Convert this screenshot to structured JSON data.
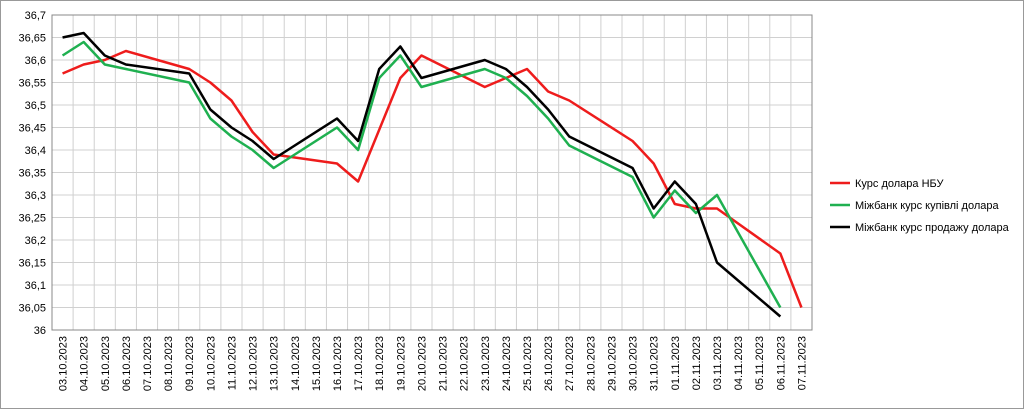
{
  "chart_data": {
    "type": "line",
    "categories": [
      "03.10.2023",
      "04.10.2023",
      "05.10.2023",
      "06.10.2023",
      "07.10.2023",
      "08.10.2023",
      "09.10.2023",
      "10.10.2023",
      "11.10.2023",
      "12.10.2023",
      "13.10.2023",
      "14.10.2023",
      "15.10.2023",
      "16.10.2023",
      "17.10.2023",
      "18.10.2023",
      "19.10.2023",
      "20.10.2023",
      "21.10.2023",
      "22.10.2023",
      "23.10.2023",
      "24.10.2023",
      "25.10.2023",
      "26.10.2023",
      "27.10.2023",
      "28.10.2023",
      "29.10.2023",
      "30.10.2023",
      "31.10.2023",
      "01.11.2023",
      "02.11.2023",
      "03.11.2023",
      "04.11.2023",
      "05.11.2023",
      "06.11.2023",
      "07.11.2023"
    ],
    "series": [
      {
        "name": "Курс долара НБУ",
        "color": "#ee1c1c",
        "x": [
          "03.10.2023",
          "04.10.2023",
          "05.10.2023",
          "06.10.2023",
          "09.10.2023",
          "10.10.2023",
          "11.10.2023",
          "12.10.2023",
          "13.10.2023",
          "16.10.2023",
          "17.10.2023",
          "19.10.2023",
          "20.10.2023",
          "23.10.2023",
          "24.10.2023",
          "25.10.2023",
          "26.10.2023",
          "27.10.2023",
          "30.10.2023",
          "31.10.2023",
          "01.11.2023",
          "02.11.2023",
          "03.11.2023",
          "06.11.2023",
          "07.11.2023"
        ],
        "values": [
          36.57,
          36.59,
          36.6,
          36.62,
          36.58,
          36.55,
          36.51,
          36.44,
          36.39,
          36.37,
          36.33,
          36.56,
          36.61,
          36.54,
          36.56,
          36.58,
          36.53,
          36.51,
          36.42,
          36.37,
          36.28,
          36.27,
          36.27,
          36.17,
          36.05
        ]
      },
      {
        "name": "Міжбанк курс купівлі долара",
        "color": "#1fb050",
        "x": [
          "03.10.2023",
          "04.10.2023",
          "05.10.2023",
          "06.10.2023",
          "09.10.2023",
          "10.10.2023",
          "11.10.2023",
          "12.10.2023",
          "13.10.2023",
          "16.10.2023",
          "17.10.2023",
          "18.10.2023",
          "19.10.2023",
          "20.10.2023",
          "23.10.2023",
          "24.10.2023",
          "25.10.2023",
          "26.10.2023",
          "27.10.2023",
          "30.10.2023",
          "31.10.2023",
          "01.11.2023",
          "02.11.2023",
          "03.11.2023",
          "06.11.2023"
        ],
        "values": [
          36.61,
          36.64,
          36.59,
          36.58,
          36.55,
          36.47,
          36.43,
          36.4,
          36.36,
          36.45,
          36.4,
          36.56,
          36.61,
          36.54,
          36.58,
          36.56,
          36.52,
          36.47,
          36.41,
          36.34,
          36.25,
          36.31,
          36.26,
          36.3,
          36.05
        ]
      },
      {
        "name": "Міжбанк курс продажу долара",
        "color": "#000000",
        "x": [
          "03.10.2023",
          "04.10.2023",
          "05.10.2023",
          "06.10.2023",
          "09.10.2023",
          "10.10.2023",
          "11.10.2023",
          "12.10.2023",
          "13.10.2023",
          "16.10.2023",
          "17.10.2023",
          "18.10.2023",
          "19.10.2023",
          "20.10.2023",
          "23.10.2023",
          "24.10.2023",
          "25.10.2023",
          "26.10.2023",
          "27.10.2023",
          "30.10.2023",
          "31.10.2023",
          "01.11.2023",
          "02.11.2023",
          "03.11.2023",
          "06.11.2023"
        ],
        "values": [
          36.65,
          36.66,
          36.61,
          36.59,
          36.57,
          36.49,
          36.45,
          36.42,
          36.38,
          36.47,
          36.42,
          36.58,
          36.63,
          36.56,
          36.6,
          36.58,
          36.54,
          36.49,
          36.43,
          36.36,
          36.27,
          36.33,
          36.28,
          36.15,
          36.03
        ]
      }
    ],
    "ylim": [
      36,
      36.7
    ],
    "yticks": [
      36,
      {
        "value": 36.05,
        "label": "36,05"
      },
      {
        "value": 36.1,
        "label": "36,1"
      },
      {
        "value": 36.15,
        "label": "36,15"
      },
      {
        "value": 36.2,
        "label": "36,2"
      },
      {
        "value": 36.25,
        "label": "36,25"
      },
      {
        "value": 36.3,
        "label": "36,3"
      },
      {
        "value": 36.35,
        "label": "36,35"
      },
      {
        "value": 36.4,
        "label": "36,4"
      },
      {
        "value": 36.45,
        "label": "36,45"
      },
      {
        "value": 36.5,
        "label": "36,5"
      },
      {
        "value": 36.55,
        "label": "36,55"
      },
      {
        "value": 36.6,
        "label": "36,6"
      },
      {
        "value": 36.65,
        "label": "36,65"
      },
      {
        "value": 36.7,
        "label": "36,7"
      }
    ],
    "grid": true,
    "legend": "right"
  }
}
